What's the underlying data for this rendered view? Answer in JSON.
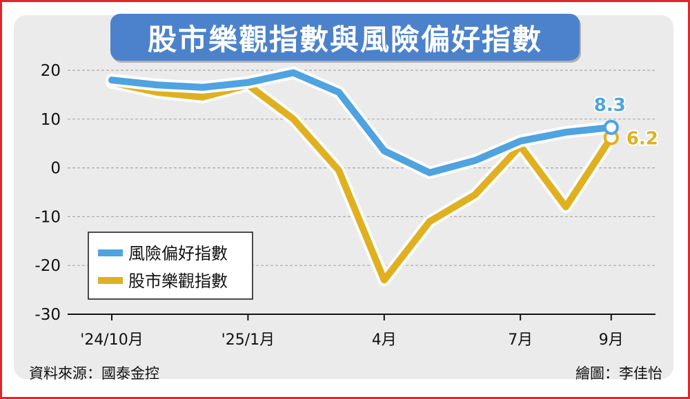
{
  "chart_data": {
    "type": "line",
    "title": "股市樂觀指數與風險偏好指數",
    "x": [
      "2024-10",
      "2024-11",
      "2024-12",
      "2025-01",
      "2025-02",
      "2025-03",
      "2025-04",
      "2025-05",
      "2025-06",
      "2025-07",
      "2025-08",
      "2025-09"
    ],
    "x_tick_labels": [
      {
        "x": "2024-10",
        "label": "'24/10月"
      },
      {
        "x": "2025-01",
        "label": "'25/1月"
      },
      {
        "x": "2025-04",
        "label": "4月"
      },
      {
        "x": "2025-07",
        "label": "7月"
      },
      {
        "x": "2025-09",
        "label": "9月"
      }
    ],
    "y_ticks": [
      20,
      10,
      0,
      -10,
      -20,
      -30
    ],
    "ylim": [
      -30,
      20
    ],
    "grid": true,
    "legend_position": "bottom-left",
    "series": [
      {
        "name": "風險偏好指數",
        "color": "#4ea3e0",
        "values": [
          18,
          17,
          16.5,
          17.5,
          19.5,
          15.5,
          3.5,
          -1,
          1.5,
          5.5,
          7.3,
          8.3
        ],
        "end_label": "8.3"
      },
      {
        "name": "股市樂觀指數",
        "color": "#e0b020",
        "values": [
          17.5,
          15.5,
          14.5,
          17,
          10,
          -0.5,
          -23,
          -11,
          -5.5,
          4.5,
          -8,
          6.2
        ],
        "end_label": "6.2"
      }
    ]
  },
  "footer": {
    "source": "資料來源：國泰金控",
    "credit": "繪圖：李佳怡"
  }
}
